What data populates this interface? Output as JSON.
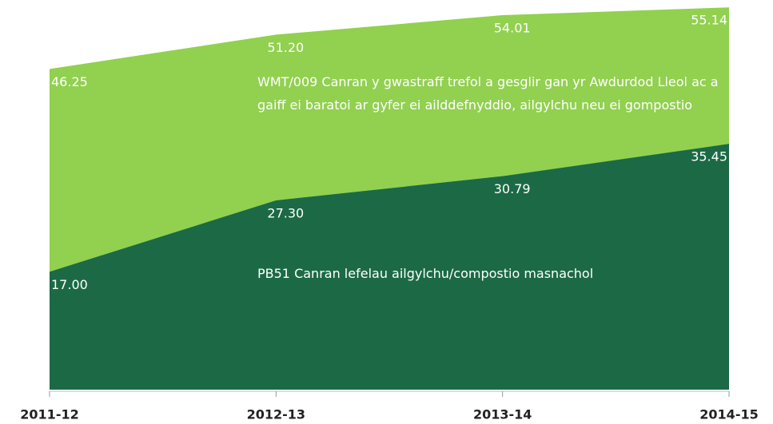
{
  "chart_data": {
    "type": "area",
    "categories": [
      "2011-12",
      "2012-13",
      "2013-14",
      "2014-15"
    ],
    "series": [
      {
        "name": "WMT/009 Canran y gwastraff trefol a gesglir gan yr Awdurdod Lleol ac a gaiff ei baratoi ar gyfer ei ailddefnyddio, ailgylchu neu ei gompostio",
        "color": "#92d050",
        "values": [
          46.25,
          51.2,
          54.01,
          55.14
        ],
        "value_labels": [
          "46.25",
          "51.20",
          "54.01",
          "55.14"
        ]
      },
      {
        "name": "PB51 Canran lefelau ailgylchu/compostio masnachol",
        "color": "#1b6a45",
        "values": [
          17.0,
          27.3,
          30.79,
          35.45
        ],
        "value_labels": [
          "17.00",
          "27.30",
          "30.79",
          "35.45"
        ]
      }
    ],
    "ylim": [
      0,
      56.2
    ]
  }
}
